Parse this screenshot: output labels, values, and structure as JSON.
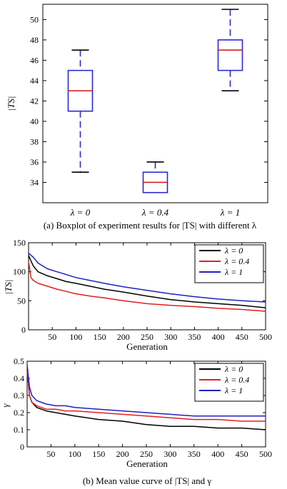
{
  "chart_data": [
    {
      "type": "box",
      "ylabel": "|TS|",
      "ylim": [
        32,
        51.5
      ],
      "yticks": [
        34,
        36,
        38,
        40,
        42,
        44,
        46,
        48,
        50
      ],
      "categories": [
        "λ = 0",
        "λ = 0.4",
        "λ = 1"
      ],
      "boxes": [
        {
          "label": "λ = 0",
          "whisker_low": 35,
          "q1": 41,
          "median": 43,
          "q3": 45,
          "whisker_high": 47
        },
        {
          "label": "λ = 0.4",
          "whisker_low": 33,
          "q1": 33,
          "median": 34,
          "q3": 35,
          "whisker_high": 36
        },
        {
          "label": "λ = 1",
          "whisker_low": 43,
          "q1": 45,
          "median": 47,
          "q3": 48,
          "whisker_high": 51
        }
      ],
      "caption": "(a) Boxplot of experiment results for |TS| with different λ",
      "box_color": "#2b2bd0",
      "median_color": "#d42020"
    },
    {
      "type": "line",
      "xlabel": "Generation",
      "ylabel": "|TS|",
      "xlim": [
        0,
        500
      ],
      "ylim": [
        0,
        150
      ],
      "xticks": [
        50,
        100,
        150,
        200,
        250,
        300,
        350,
        400,
        450,
        500
      ],
      "yticks": [
        0,
        50,
        100,
        150
      ],
      "legend_position": "top-right",
      "series": [
        {
          "name": "λ = 0",
          "color": "#000000",
          "x": [
            0,
            10,
            20,
            40,
            60,
            80,
            100,
            130,
            160,
            200,
            250,
            300,
            350,
            400,
            450,
            500
          ],
          "y": [
            128,
            110,
            100,
            93,
            88,
            83,
            80,
            75,
            70,
            65,
            58,
            52,
            48,
            45,
            42,
            38
          ]
        },
        {
          "name": "λ = 0.4",
          "color": "#e02020",
          "x": [
            0,
            5,
            10,
            20,
            40,
            60,
            80,
            100,
            130,
            160,
            200,
            250,
            300,
            350,
            400,
            450,
            500
          ],
          "y": [
            118,
            90,
            85,
            80,
            75,
            70,
            66,
            62,
            58,
            55,
            50,
            45,
            42,
            40,
            37,
            35,
            32
          ]
        },
        {
          "name": "λ = 1",
          "color": "#2020c0",
          "x": [
            0,
            10,
            20,
            40,
            60,
            80,
            100,
            130,
            160,
            200,
            250,
            300,
            350,
            400,
            450,
            500
          ],
          "y": [
            132,
            125,
            115,
            105,
            100,
            95,
            90,
            85,
            80,
            74,
            68,
            62,
            57,
            53,
            50,
            48
          ]
        }
      ]
    },
    {
      "type": "line",
      "xlabel": "Generation",
      "ylabel": "γ",
      "xlim": [
        0,
        500
      ],
      "ylim": [
        0,
        0.5
      ],
      "xticks": [
        50,
        100,
        150,
        200,
        250,
        300,
        350,
        400,
        450,
        500
      ],
      "yticks": [
        0,
        0.1,
        0.2,
        0.3,
        0.4,
        0.5
      ],
      "legend_position": "top-right",
      "series": [
        {
          "name": "λ = 0",
          "color": "#000000",
          "x": [
            0,
            5,
            10,
            20,
            40,
            60,
            80,
            100,
            150,
            200,
            250,
            300,
            350,
            400,
            450,
            500
          ],
          "y": [
            0.45,
            0.3,
            0.26,
            0.23,
            0.21,
            0.2,
            0.19,
            0.18,
            0.16,
            0.15,
            0.13,
            0.12,
            0.12,
            0.11,
            0.11,
            0.1
          ]
        },
        {
          "name": "λ = 0.4",
          "color": "#e02020",
          "x": [
            0,
            5,
            10,
            20,
            40,
            60,
            80,
            100,
            150,
            200,
            250,
            300,
            350,
            400,
            450,
            500
          ],
          "y": [
            0.45,
            0.3,
            0.26,
            0.24,
            0.22,
            0.22,
            0.21,
            0.21,
            0.2,
            0.19,
            0.18,
            0.17,
            0.16,
            0.16,
            0.15,
            0.15
          ]
        },
        {
          "name": "λ = 1",
          "color": "#2020c0",
          "x": [
            0,
            5,
            10,
            20,
            40,
            60,
            80,
            100,
            150,
            200,
            250,
            300,
            350,
            400,
            450,
            500
          ],
          "y": [
            0.48,
            0.35,
            0.3,
            0.27,
            0.25,
            0.24,
            0.24,
            0.23,
            0.22,
            0.21,
            0.2,
            0.19,
            0.18,
            0.18,
            0.18,
            0.18
          ]
        }
      ]
    }
  ],
  "caption_bottom": "(b) Mean value curve of |TS| and γ"
}
